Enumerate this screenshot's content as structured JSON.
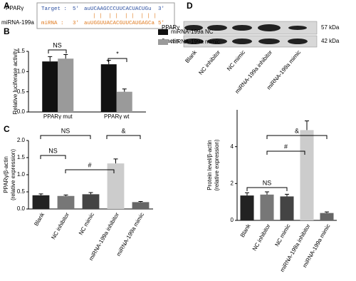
{
  "panel_labels": [
    "A",
    "B",
    "C",
    "D"
  ],
  "sequence": {
    "gene": "PPARγ",
    "mirna": "miRNA-199a",
    "target_label": "Target :",
    "target_5": "5'",
    "target_seq": "auUCAAGCCCUUCACUACUGu",
    "target_3": "3'",
    "pairing": "| |  | |  | |  | | |",
    "mirna_label": "miRNA :",
    "mirna_3": "3'",
    "mirna_seq": "auUGGUUACACGUUCAUGAGCa",
    "mirna_5": "5'"
  },
  "blot": {
    "rows": [
      "PPARγ",
      "β-actin"
    ],
    "sizes": [
      "57 kDa",
      "42 kDa"
    ],
    "lanes": [
      "Blank",
      "NC inhibitor",
      "NC mimic",
      "miRNA-199a inhibitor",
      "miRNA-199a mimic"
    ]
  },
  "chart_data": [
    {
      "type": "bar",
      "ylabel": [
        "Relative luciferase activity"
      ],
      "categories": [
        "PPARγ mut",
        "PPARγ wt"
      ],
      "series": [
        {
          "name": "miRNA-199a NC",
          "color": "#111111",
          "values": [
            1.25,
            1.18
          ],
          "errors": [
            0.12,
            0.1
          ]
        },
        {
          "name": "miRNA-199a mimic",
          "color": "#9a9a9a",
          "values": [
            1.32,
            0.5
          ],
          "errors": [
            0.1,
            0.07
          ]
        }
      ],
      "ylim": [
        0,
        1.5
      ],
      "yticks": [
        {
          "value": 0,
          "label": "0.0"
        },
        0.5,
        {
          "value": 1,
          "label": "1.0"
        },
        1.5
      ],
      "annotations": [
        "NS",
        "*"
      ]
    },
    {
      "type": "bar",
      "ylabel": [
        "PPARγ/β-actin",
        "(relative expression)"
      ],
      "categories": [
        "Blank",
        "NC inhibitor",
        "NC mimic",
        "miRNA-199a inhibitor",
        "miRNA-199a mimic"
      ],
      "values": [
        0.4,
        0.38,
        0.43,
        1.33,
        0.2
      ],
      "errors": [
        0.04,
        0.03,
        0.05,
        0.13,
        0.02
      ],
      "colors": [
        "#222222",
        "#777777",
        "#444444",
        "#cccccc",
        "#666666"
      ],
      "ylim": [
        0,
        2
      ],
      "yticks": [
        {
          "value": 0,
          "label": "0.0"
        },
        0.5,
        {
          "value": 1,
          "label": "1.0"
        },
        1.5,
        {
          "value": 2,
          "label": "2.0"
        }
      ],
      "annotations": [
        "NS",
        "&",
        "NS",
        "#"
      ]
    },
    {
      "type": "bar",
      "ylabel": [
        "Protein level/β-actin",
        "(relative expression)"
      ],
      "categories": [
        "Blank",
        "NC inhibitor",
        "NC mimic",
        "miRNA-199a inhibitor",
        "miRNA-199a mimic"
      ],
      "values": [
        1.35,
        1.4,
        1.3,
        4.9,
        0.4
      ],
      "errors": [
        0.15,
        0.15,
        0.12,
        0.5,
        0.06
      ],
      "colors": [
        "#222222",
        "#777777",
        "#444444",
        "#cccccc",
        "#666666"
      ],
      "ylim": [
        0,
        6
      ],
      "yticks": [
        0,
        2,
        4
      ],
      "annotations": [
        "&",
        "#",
        "NS"
      ]
    }
  ]
}
